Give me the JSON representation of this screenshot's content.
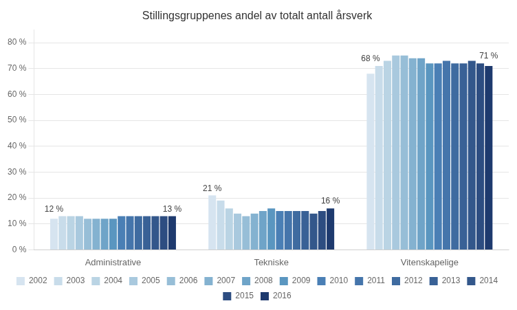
{
  "chart_data": {
    "type": "bar",
    "title": "Stillingsgruppenes andel av totalt antall årsverk",
    "categories": [
      "Administrative",
      "Tekniske",
      "Vitenskapelige"
    ],
    "series": [
      {
        "name": "2002",
        "color": "#d6e4f0",
        "values": [
          12,
          21,
          68
        ],
        "value_labels": [
          "12 %",
          "21 %",
          "68 %"
        ]
      },
      {
        "name": "2003",
        "color": "#c8dcea",
        "values": [
          13,
          19,
          71
        ]
      },
      {
        "name": "2004",
        "color": "#bad4e4",
        "values": [
          13,
          16,
          73
        ]
      },
      {
        "name": "2005",
        "color": "#a9c9de",
        "values": [
          13,
          14,
          75
        ]
      },
      {
        "name": "2006",
        "color": "#97bed7",
        "values": [
          12,
          13,
          75
        ]
      },
      {
        "name": "2007",
        "color": "#84b2d0",
        "values": [
          12,
          14,
          74
        ]
      },
      {
        "name": "2008",
        "color": "#6fa4c8",
        "values": [
          12,
          15,
          74
        ]
      },
      {
        "name": "2009",
        "color": "#5a96c0",
        "values": [
          12,
          16,
          72
        ]
      },
      {
        "name": "2010",
        "color": "#4a7fb5",
        "values": [
          13,
          15,
          72
        ]
      },
      {
        "name": "2011",
        "color": "#4575ab",
        "values": [
          13,
          15,
          73
        ]
      },
      {
        "name": "2012",
        "color": "#3f6ba0",
        "values": [
          13,
          15,
          72
        ]
      },
      {
        "name": "2013",
        "color": "#396196",
        "values": [
          13,
          15,
          72
        ]
      },
      {
        "name": "2014",
        "color": "#33578b",
        "values": [
          13,
          14,
          73
        ]
      },
      {
        "name": "2015",
        "color": "#2d4d81",
        "values": [
          13,
          15,
          72
        ]
      },
      {
        "name": "2016",
        "color": "#1e3a6e",
        "values": [
          13,
          16,
          71
        ],
        "value_labels": [
          "13 %",
          "16 %",
          "71 %"
        ]
      }
    ],
    "ylim": [
      0,
      85
    ],
    "yticks": [
      {
        "value": 0,
        "label": "0 %"
      },
      {
        "value": 10,
        "label": "10 %"
      },
      {
        "value": 20,
        "label": "20 %"
      },
      {
        "value": 30,
        "label": "30 %"
      },
      {
        "value": 40,
        "label": "40 %"
      },
      {
        "value": 50,
        "label": "50 %"
      },
      {
        "value": 60,
        "label": "60 %"
      },
      {
        "value": 70,
        "label": "70 %"
      },
      {
        "value": 80,
        "label": "80 %"
      }
    ],
    "grid": true,
    "legend": "bottom"
  }
}
